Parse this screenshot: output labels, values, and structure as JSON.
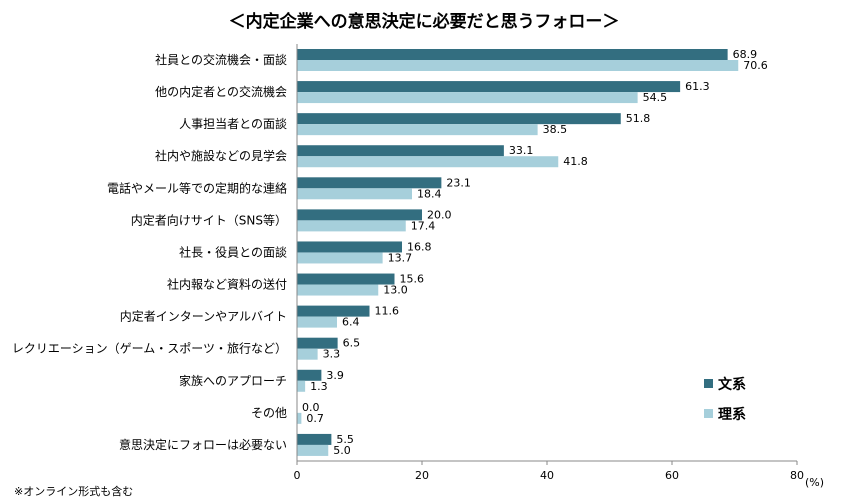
{
  "chart_data": {
    "type": "bar",
    "orientation": "horizontal",
    "title": "＜内定企業への意思決定に必要だと思うフォロー＞",
    "categories": [
      "社員との交流機会・面談",
      "他の内定者との交流機会",
      "人事担当者との面談",
      "社内や施設などの見学会",
      "電話やメール等での定期的な連絡",
      "内定者向けサイト（SNS等）",
      "社長・役員との面談",
      "社内報など資料の送付",
      "内定者インターンやアルバイト",
      "レクリエーション（ゲーム・スポーツ・旅行など）",
      "家族へのアプローチ",
      "その他",
      "意思決定にフォローは必要ない"
    ],
    "series": [
      {
        "name": "文系",
        "color": "#336e80",
        "values": [
          68.9,
          61.3,
          51.8,
          33.1,
          23.1,
          20.0,
          16.8,
          15.6,
          11.6,
          6.5,
          3.9,
          0.0,
          5.5
        ],
        "labels": [
          "68.9",
          "61.3",
          "51.8",
          "33.1",
          "23.1",
          "20.0",
          "16.8",
          "15.6",
          "11.6",
          "6.5",
          "3.9",
          "0.0",
          "5.5"
        ]
      },
      {
        "name": "理系",
        "color": "#a6cfdb",
        "values": [
          70.6,
          54.5,
          38.5,
          41.8,
          18.4,
          17.4,
          13.7,
          13.0,
          6.4,
          3.3,
          1.3,
          0.7,
          5.0
        ],
        "labels": [
          "70.6",
          "54.5",
          "38.5",
          "41.8",
          "18.4",
          "17.4",
          "13.7",
          "13.0",
          "6.4",
          "3.3",
          "1.3",
          "0.7",
          "5.0"
        ]
      }
    ],
    "xlim": [
      0,
      80
    ],
    "xticks": [
      "0",
      "20",
      "40",
      "60",
      "80"
    ],
    "unit": "(%)",
    "legend_position": "bottom-right",
    "grid": false,
    "footnote": "※オンライン形式も含む"
  }
}
